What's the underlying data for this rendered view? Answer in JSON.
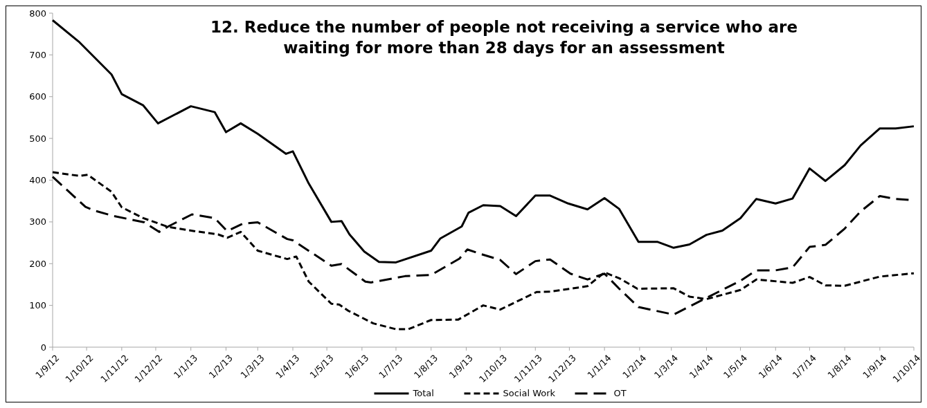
{
  "chart_data": {
    "type": "line",
    "title": "12. Reduce the number of people not receiving a service who are waiting for more than 28 days for an assessment",
    "xlim": [
      "2012-09-01",
      "2014-10-01"
    ],
    "xticks": [
      {
        "value": "2012-09-01",
        "label": "1/9/12"
      },
      {
        "value": "2012-10-01",
        "label": "1/10/12"
      },
      {
        "value": "2012-11-01",
        "label": "1/11/12"
      },
      {
        "value": "2012-12-01",
        "label": "1/12/12"
      },
      {
        "value": "2013-01-01",
        "label": "1/1/13"
      },
      {
        "value": "2013-02-01",
        "label": "1/2/13"
      },
      {
        "value": "2013-03-01",
        "label": "1/3/13"
      },
      {
        "value": "2013-04-01",
        "label": "1/4/13"
      },
      {
        "value": "2013-05-01",
        "label": "1/5/13"
      },
      {
        "value": "2013-06-01",
        "label": "1/6/13"
      },
      {
        "value": "2013-07-01",
        "label": "1/7/13"
      },
      {
        "value": "2013-08-01",
        "label": "1/8/13"
      },
      {
        "value": "2013-09-01",
        "label": "1/9/13"
      },
      {
        "value": "2013-10-01",
        "label": "1/10/13"
      },
      {
        "value": "2013-11-01",
        "label": "1/11/13"
      },
      {
        "value": "2013-12-01",
        "label": "1/12/13"
      },
      {
        "value": "2014-01-01",
        "label": "1/1/14"
      },
      {
        "value": "2014-02-01",
        "label": "1/2/14"
      },
      {
        "value": "2014-03-01",
        "label": "1/3/14"
      },
      {
        "value": "2014-04-01",
        "label": "1/4/14"
      },
      {
        "value": "2014-05-01",
        "label": "1/5/14"
      },
      {
        "value": "2014-06-01",
        "label": "1/6/14"
      },
      {
        "value": "2014-07-01",
        "label": "1/7/14"
      },
      {
        "value": "2014-08-01",
        "label": "1/8/14"
      },
      {
        "value": "2014-09-01",
        "label": "1/9/14"
      },
      {
        "value": "2014-10-01",
        "label": "1/10/14"
      }
    ],
    "ylim": [
      0,
      800
    ],
    "yticks": [
      0,
      100,
      200,
      300,
      400,
      500,
      600,
      700,
      800
    ],
    "legend": "bottom",
    "grid": false,
    "marker": "none",
    "series": [
      {
        "name": "Total",
        "color": "#000000",
        "line_style": "solid",
        "x": [
          "2012-09-01",
          "2012-09-24",
          "2012-10-23",
          "2012-11-01",
          "2012-11-20",
          "2012-12-03",
          "2013-01-01",
          "2013-01-22",
          "2013-02-01",
          "2013-02-14",
          "2013-03-01",
          "2013-03-26",
          "2013-04-01",
          "2013-04-15",
          "2013-05-05",
          "2013-05-14",
          "2013-05-21",
          "2013-06-03",
          "2013-06-16",
          "2013-07-01",
          "2013-08-01",
          "2013-08-09",
          "2013-08-28",
          "2013-09-03",
          "2013-09-16",
          "2013-10-01",
          "2013-10-15",
          "2013-11-01",
          "2013-11-14",
          "2013-11-30",
          "2013-12-17",
          "2014-01-01",
          "2014-01-14",
          "2014-01-31",
          "2014-02-17",
          "2014-03-03",
          "2014-03-17",
          "2014-04-01",
          "2014-04-15",
          "2014-05-01",
          "2014-05-15",
          "2014-06-01",
          "2014-06-16",
          "2014-07-01",
          "2014-07-15",
          "2014-08-01",
          "2014-08-15",
          "2014-09-01",
          "2014-09-15",
          "2014-10-01"
        ],
        "values": [
          783,
          732,
          653,
          606,
          579,
          536,
          577,
          563,
          515,
          536,
          511,
          463,
          469,
          392,
          300,
          302,
          270,
          229,
          204,
          203,
          231,
          260,
          289,
          322,
          340,
          338,
          314,
          363,
          363,
          344,
          330,
          357,
          331,
          252,
          252,
          238,
          246,
          269,
          279,
          309,
          355,
          344,
          356,
          428,
          398,
          436,
          483,
          524,
          524,
          529
        ]
      },
      {
        "name": "Social Work",
        "color": "#000000",
        "line_style": "dashed",
        "x": [
          "2012-09-01",
          "2012-09-25",
          "2012-10-02",
          "2012-10-23",
          "2012-11-01",
          "2012-11-20",
          "2012-12-12",
          "2013-01-04",
          "2013-01-25",
          "2013-02-02",
          "2013-02-14",
          "2013-03-01",
          "2013-03-27",
          "2013-04-04",
          "2013-04-15",
          "2013-05-05",
          "2013-05-12",
          "2013-05-20",
          "2013-06-11",
          "2013-07-01",
          "2013-07-12",
          "2013-08-01",
          "2013-08-25",
          "2013-09-16",
          "2013-10-01",
          "2013-11-02",
          "2013-11-14",
          "2013-12-17",
          "2014-01-01",
          "2014-01-14",
          "2014-01-30",
          "2014-03-03",
          "2014-03-17",
          "2014-04-01",
          "2014-05-01",
          "2014-05-15",
          "2014-06-16",
          "2014-07-01",
          "2014-07-15",
          "2014-08-01",
          "2014-09-01",
          "2014-10-01"
        ],
        "values": [
          419,
          410,
          413,
          372,
          335,
          309,
          288,
          278,
          270,
          262,
          276,
          231,
          211,
          217,
          157,
          104,
          102,
          87,
          57,
          43,
          43,
          65,
          66,
          100,
          90,
          132,
          133,
          146,
          179,
          165,
          140,
          141,
          121,
          115,
          137,
          162,
          154,
          168,
          148,
          147,
          169,
          177
        ]
      },
      {
        "name": "OT",
        "color": "#000000",
        "line_style": "dashed",
        "x": [
          "2012-09-01",
          "2012-09-30",
          "2012-10-08",
          "2012-10-25",
          "2012-11-21",
          "2012-12-04",
          "2012-12-12",
          "2013-01-02",
          "2013-01-22",
          "2013-02-02",
          "2013-02-16",
          "2013-03-01",
          "2013-03-27",
          "2013-04-01",
          "2013-05-05",
          "2013-05-14",
          "2013-06-04",
          "2013-06-09",
          "2013-07-09",
          "2013-08-01",
          "2013-08-26",
          "2013-09-02",
          "2013-09-14",
          "2013-10-01",
          "2013-10-15",
          "2013-11-01",
          "2013-11-14",
          "2013-12-02",
          "2013-12-17",
          "2014-01-01",
          "2014-01-14",
          "2014-01-31",
          "2014-03-03",
          "2014-04-01",
          "2014-05-01",
          "2014-05-15",
          "2014-06-01",
          "2014-06-16",
          "2014-07-01",
          "2014-07-15",
          "2014-08-01",
          "2014-08-15",
          "2014-09-01",
          "2014-09-15",
          "2014-10-01"
        ],
        "values": [
          408,
          336,
          327,
          314,
          299,
          276,
          289,
          318,
          309,
          278,
          296,
          299,
          259,
          256,
          195,
          199,
          157,
          155,
          170,
          173,
          212,
          234,
          223,
          209,
          175,
          206,
          210,
          176,
          162,
          176,
          140,
          96,
          78,
          118,
          159,
          184,
          184,
          191,
          240,
          245,
          284,
          325,
          362,
          355,
          352
        ]
      }
    ]
  }
}
